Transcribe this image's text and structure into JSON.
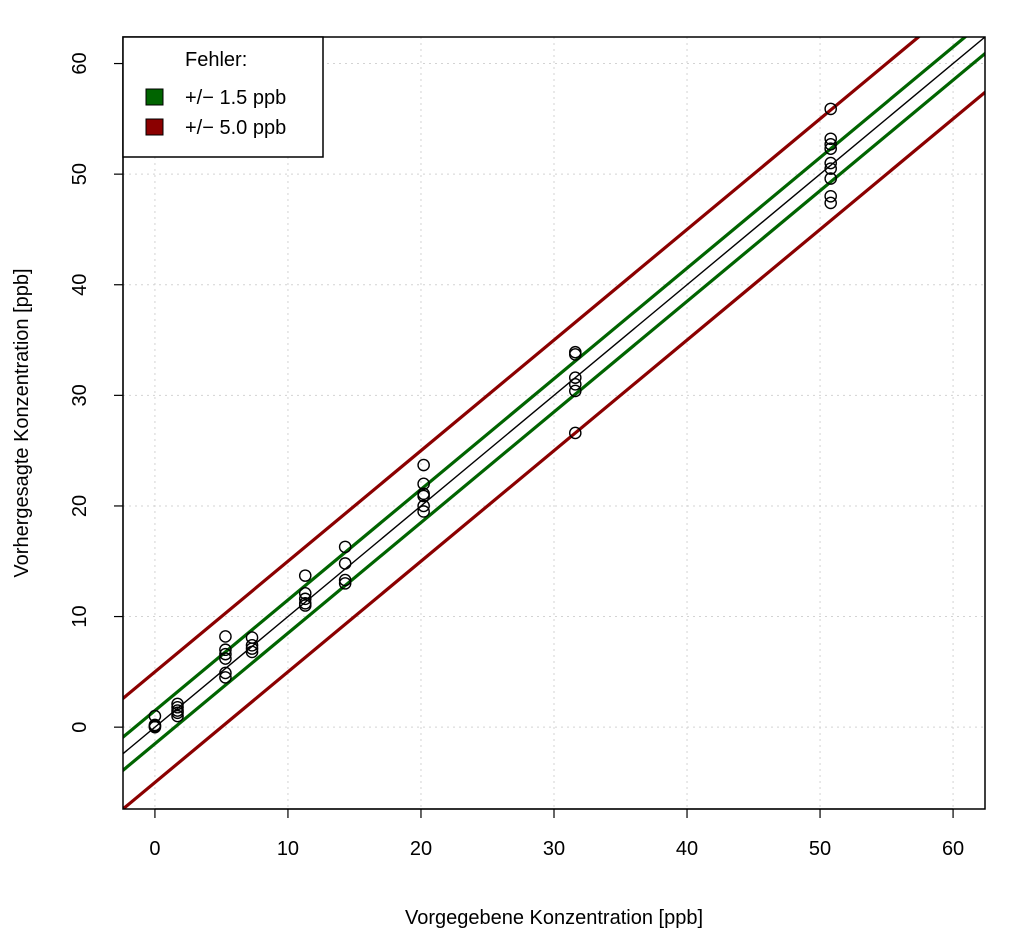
{
  "chart_data": {
    "type": "scatter",
    "xlabel": "Vorgegebene Konzentration [ppb]",
    "ylabel": "Vorhergesagte Konzentration [ppb]",
    "xlim": [
      -2.4,
      62.4
    ],
    "ylim": [
      -7.4,
      62.4
    ],
    "x_ticks": [
      0,
      10,
      20,
      30,
      40,
      50,
      60
    ],
    "y_ticks": [
      0,
      10,
      20,
      30,
      40,
      50,
      60
    ],
    "x_tick_labels": [
      "0",
      "10",
      "20",
      "30",
      "40",
      "50",
      "60"
    ],
    "y_tick_labels": [
      "0",
      "10",
      "20",
      "30",
      "40",
      "50",
      "60"
    ],
    "grid": true,
    "legend": {
      "title": "Fehler:",
      "position": "top-left",
      "entries": [
        {
          "label": "+/− 1.5 ppb",
          "color": "#006400"
        },
        {
          "label": "+/− 5.0 ppb",
          "color": "#8b0000"
        }
      ]
    },
    "reference_lines": [
      {
        "intercept": 0,
        "slope": 1,
        "color": "#000000",
        "width": 1.4
      },
      {
        "intercept": 1.5,
        "slope": 1,
        "color": "#006400",
        "width": 3.2
      },
      {
        "intercept": -1.5,
        "slope": 1,
        "color": "#006400",
        "width": 3.2
      },
      {
        "intercept": 5.0,
        "slope": 1,
        "color": "#8b0000",
        "width": 3.2
      },
      {
        "intercept": -5.0,
        "slope": 1,
        "color": "#8b0000",
        "width": 3.2
      }
    ],
    "points": [
      {
        "x": 0,
        "y": 1.0
      },
      {
        "x": 0,
        "y": 0.2
      },
      {
        "x": 0,
        "y": 0.1
      },
      {
        "x": 0,
        "y": 0.0
      },
      {
        "x": 1.7,
        "y": 2.1
      },
      {
        "x": 1.7,
        "y": 1.8
      },
      {
        "x": 1.7,
        "y": 1.5
      },
      {
        "x": 1.7,
        "y": 1.3
      },
      {
        "x": 1.7,
        "y": 1.0
      },
      {
        "x": 5.3,
        "y": 8.2
      },
      {
        "x": 5.3,
        "y": 7.0
      },
      {
        "x": 5.3,
        "y": 6.6
      },
      {
        "x": 5.3,
        "y": 6.2
      },
      {
        "x": 5.3,
        "y": 4.9
      },
      {
        "x": 5.3,
        "y": 4.5
      },
      {
        "x": 7.3,
        "y": 8.1
      },
      {
        "x": 7.3,
        "y": 7.4
      },
      {
        "x": 7.3,
        "y": 7.1
      },
      {
        "x": 7.3,
        "y": 6.8
      },
      {
        "x": 11.3,
        "y": 13.7
      },
      {
        "x": 11.3,
        "y": 12.1
      },
      {
        "x": 11.3,
        "y": 11.6
      },
      {
        "x": 11.3,
        "y": 11.2
      },
      {
        "x": 11.3,
        "y": 11.0
      },
      {
        "x": 14.3,
        "y": 16.3
      },
      {
        "x": 14.3,
        "y": 14.8
      },
      {
        "x": 14.3,
        "y": 13.3
      },
      {
        "x": 14.3,
        "y": 13.0
      },
      {
        "x": 20.2,
        "y": 23.7
      },
      {
        "x": 20.2,
        "y": 22.0
      },
      {
        "x": 20.2,
        "y": 21.1
      },
      {
        "x": 20.2,
        "y": 20.9
      },
      {
        "x": 20.2,
        "y": 20.0
      },
      {
        "x": 20.2,
        "y": 19.5
      },
      {
        "x": 31.6,
        "y": 33.9
      },
      {
        "x": 31.6,
        "y": 33.7
      },
      {
        "x": 31.6,
        "y": 31.6
      },
      {
        "x": 31.6,
        "y": 31.0
      },
      {
        "x": 31.6,
        "y": 30.4
      },
      {
        "x": 31.6,
        "y": 26.6
      },
      {
        "x": 50.8,
        "y": 55.9
      },
      {
        "x": 50.8,
        "y": 53.2
      },
      {
        "x": 50.8,
        "y": 52.7
      },
      {
        "x": 50.8,
        "y": 52.3
      },
      {
        "x": 50.8,
        "y": 51.0
      },
      {
        "x": 50.8,
        "y": 50.5
      },
      {
        "x": 50.8,
        "y": 49.6
      },
      {
        "x": 50.8,
        "y": 48.0
      },
      {
        "x": 50.8,
        "y": 47.4
      }
    ]
  }
}
